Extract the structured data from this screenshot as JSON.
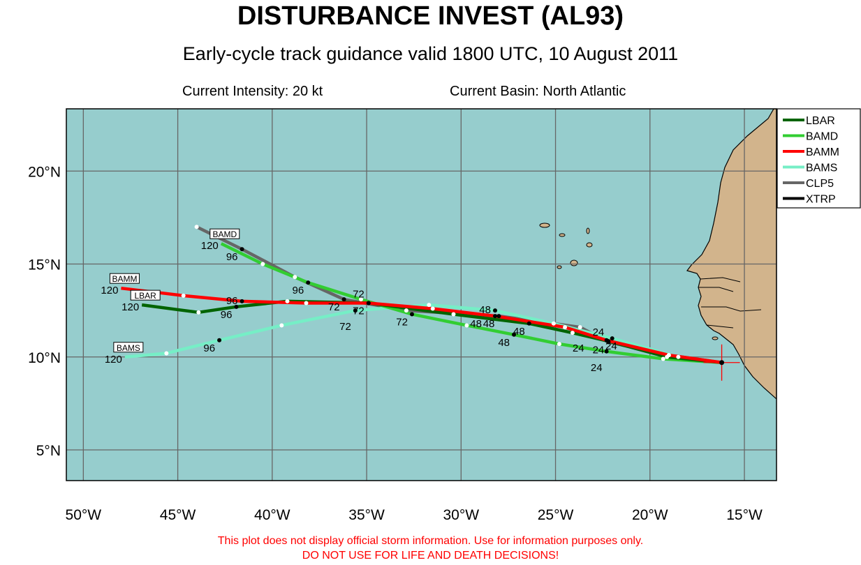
{
  "header": {
    "title": "DISTURBANCE INVEST (AL93)",
    "subtitle": "Early-cycle track guidance valid 1800 UTC, 10 August 2011",
    "intensity": "Current Intensity: 20 kt",
    "basin": "Current Basin: North Atlantic"
  },
  "disclaimer": {
    "line1": "This plot does not display official storm information. Use for information purposes only.",
    "line2": "DO NOT USE FOR LIFE AND DEATH DECISIONS!"
  },
  "colors": {
    "ocean": "#96CDCD",
    "land": "#D2B48C",
    "grid": "#666666",
    "storm_marker": "#FF0000"
  },
  "chart_data": {
    "type": "map-track",
    "lon_range": [
      -50.9,
      -13.3
    ],
    "lat_range": [
      3.35,
      23.35
    ],
    "lon_ticks": [
      {
        "v": -50,
        "label": "50°W"
      },
      {
        "v": -45,
        "label": "45°W"
      },
      {
        "v": -40,
        "label": "40°W"
      },
      {
        "v": -35,
        "label": "35°W"
      },
      {
        "v": -30,
        "label": "30°W"
      },
      {
        "v": -25,
        "label": "25°W"
      },
      {
        "v": -20,
        "label": "20°W"
      },
      {
        "v": -15,
        "label": "15°W"
      }
    ],
    "lat_ticks": [
      {
        "v": 5,
        "label": "5°N"
      },
      {
        "v": 10,
        "label": "10°N"
      },
      {
        "v": 15,
        "label": "15°N"
      },
      {
        "v": 20,
        "label": "20°N"
      }
    ],
    "current_position": {
      "lon": -16.2,
      "lat": 9.7
    },
    "hours": [
      0,
      12,
      24,
      36,
      48,
      60,
      72,
      84,
      96,
      108,
      120
    ],
    "series": [
      {
        "name": "LBAR",
        "color": "#006400",
        "points": [
          [
            -16.2,
            9.7
          ],
          [
            -19.1,
            10.0
          ],
          [
            -22.2,
            10.85
          ],
          [
            -24.1,
            11.3
          ],
          [
            -26.4,
            11.8
          ],
          [
            -30.4,
            12.3
          ],
          [
            -34.9,
            12.9
          ],
          [
            -39.2,
            13.0
          ],
          [
            -41.9,
            12.7
          ],
          [
            -43.9,
            12.4
          ],
          [
            -46.9,
            12.8
          ]
        ]
      },
      {
        "name": "BAMD",
        "color": "#32CD32",
        "points": [
          [
            -16.2,
            9.7
          ],
          [
            -19.3,
            9.9
          ],
          [
            -22.3,
            10.3
          ],
          [
            -24.8,
            10.7
          ],
          [
            -27.2,
            11.2
          ],
          [
            -29.7,
            11.7
          ],
          [
            -32.6,
            12.3
          ],
          [
            -35.3,
            13.1
          ],
          [
            -38.1,
            14.0
          ],
          [
            -40.5,
            15.0
          ],
          [
            -42.7,
            16.1
          ]
        ]
      },
      {
        "name": "BAMM",
        "color": "#FF0000",
        "points": [
          [
            -16.2,
            9.7
          ],
          [
            -19.0,
            10.1
          ],
          [
            -22.3,
            10.9
          ],
          [
            -24.5,
            11.6
          ],
          [
            -28.2,
            12.2
          ],
          [
            -31.5,
            12.6
          ],
          [
            -34.9,
            12.9
          ],
          [
            -38.2,
            12.9
          ],
          [
            -41.6,
            13.0
          ],
          [
            -44.7,
            13.3
          ],
          [
            -48.0,
            13.7
          ]
        ]
      },
      {
        "name": "BAMS",
        "color": "#76EEC6",
        "points": [
          [
            -16.2,
            9.7
          ],
          [
            -18.5,
            10.0
          ],
          [
            -22.0,
            11.0
          ],
          [
            -25.1,
            11.8
          ],
          [
            -28.2,
            12.5
          ],
          [
            -31.7,
            12.8
          ],
          [
            -35.6,
            12.5
          ],
          [
            -39.5,
            11.7
          ],
          [
            -42.8,
            10.9
          ],
          [
            -45.6,
            10.2
          ],
          [
            -47.8,
            10.0
          ]
        ]
      },
      {
        "name": "CLP5",
        "color": "#666666",
        "points": [
          [
            -16.2,
            9.7
          ],
          [
            -19.0,
            10.1
          ],
          [
            -22.2,
            10.8
          ],
          [
            -23.7,
            11.6
          ],
          [
            -28.0,
            12.2
          ],
          [
            -32.9,
            12.5
          ],
          [
            -36.2,
            13.1
          ],
          [
            -38.8,
            14.3
          ],
          [
            -41.6,
            15.8
          ],
          [
            -44.0,
            17.0
          ]
        ]
      },
      {
        "name": "XTRP",
        "color": "#000000",
        "points": [
          [
            -16.2,
            9.7
          ]
        ]
      }
    ],
    "hour_labels": [
      "24",
      "48",
      "72",
      "96",
      "120"
    ]
  }
}
